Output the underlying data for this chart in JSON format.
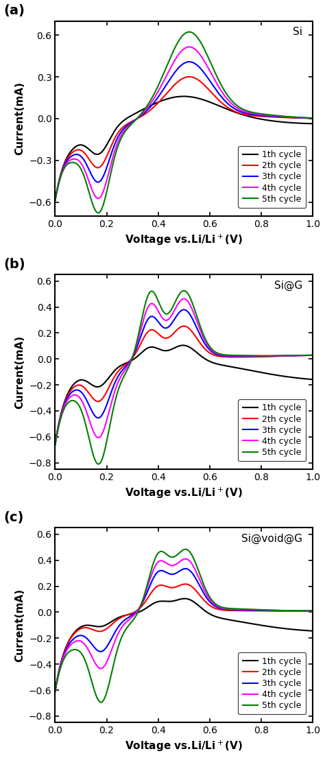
{
  "panels": [
    {
      "label": "(a)",
      "title": "Si",
      "ylim": [
        -0.7,
        0.7
      ],
      "yticks": [
        -0.6,
        -0.3,
        0.0,
        0.3,
        0.6
      ]
    },
    {
      "label": "(b)",
      "title": "Si@G",
      "ylim": [
        -0.85,
        0.65
      ],
      "yticks": [
        -0.8,
        -0.6,
        -0.4,
        -0.2,
        0.0,
        0.2,
        0.4,
        0.6
      ]
    },
    {
      "label": "(c)",
      "title": "Si@void@G",
      "ylim": [
        -0.85,
        0.65
      ],
      "yticks": [
        -0.8,
        -0.6,
        -0.4,
        -0.2,
        0.0,
        0.2,
        0.4,
        0.6
      ]
    }
  ],
  "colors": [
    "#000000",
    "#ff0000",
    "#0000ff",
    "#ff00ff",
    "#008000"
  ],
  "legend_labels": [
    "1th cycle",
    "2th cycle",
    "3th cycle",
    "4th cycle",
    "5th cycle"
  ],
  "xlabel": "Voltage vs.Li/Li$^+$(V)",
  "ylabel": "Current(mA)",
  "linewidth": 1.5
}
